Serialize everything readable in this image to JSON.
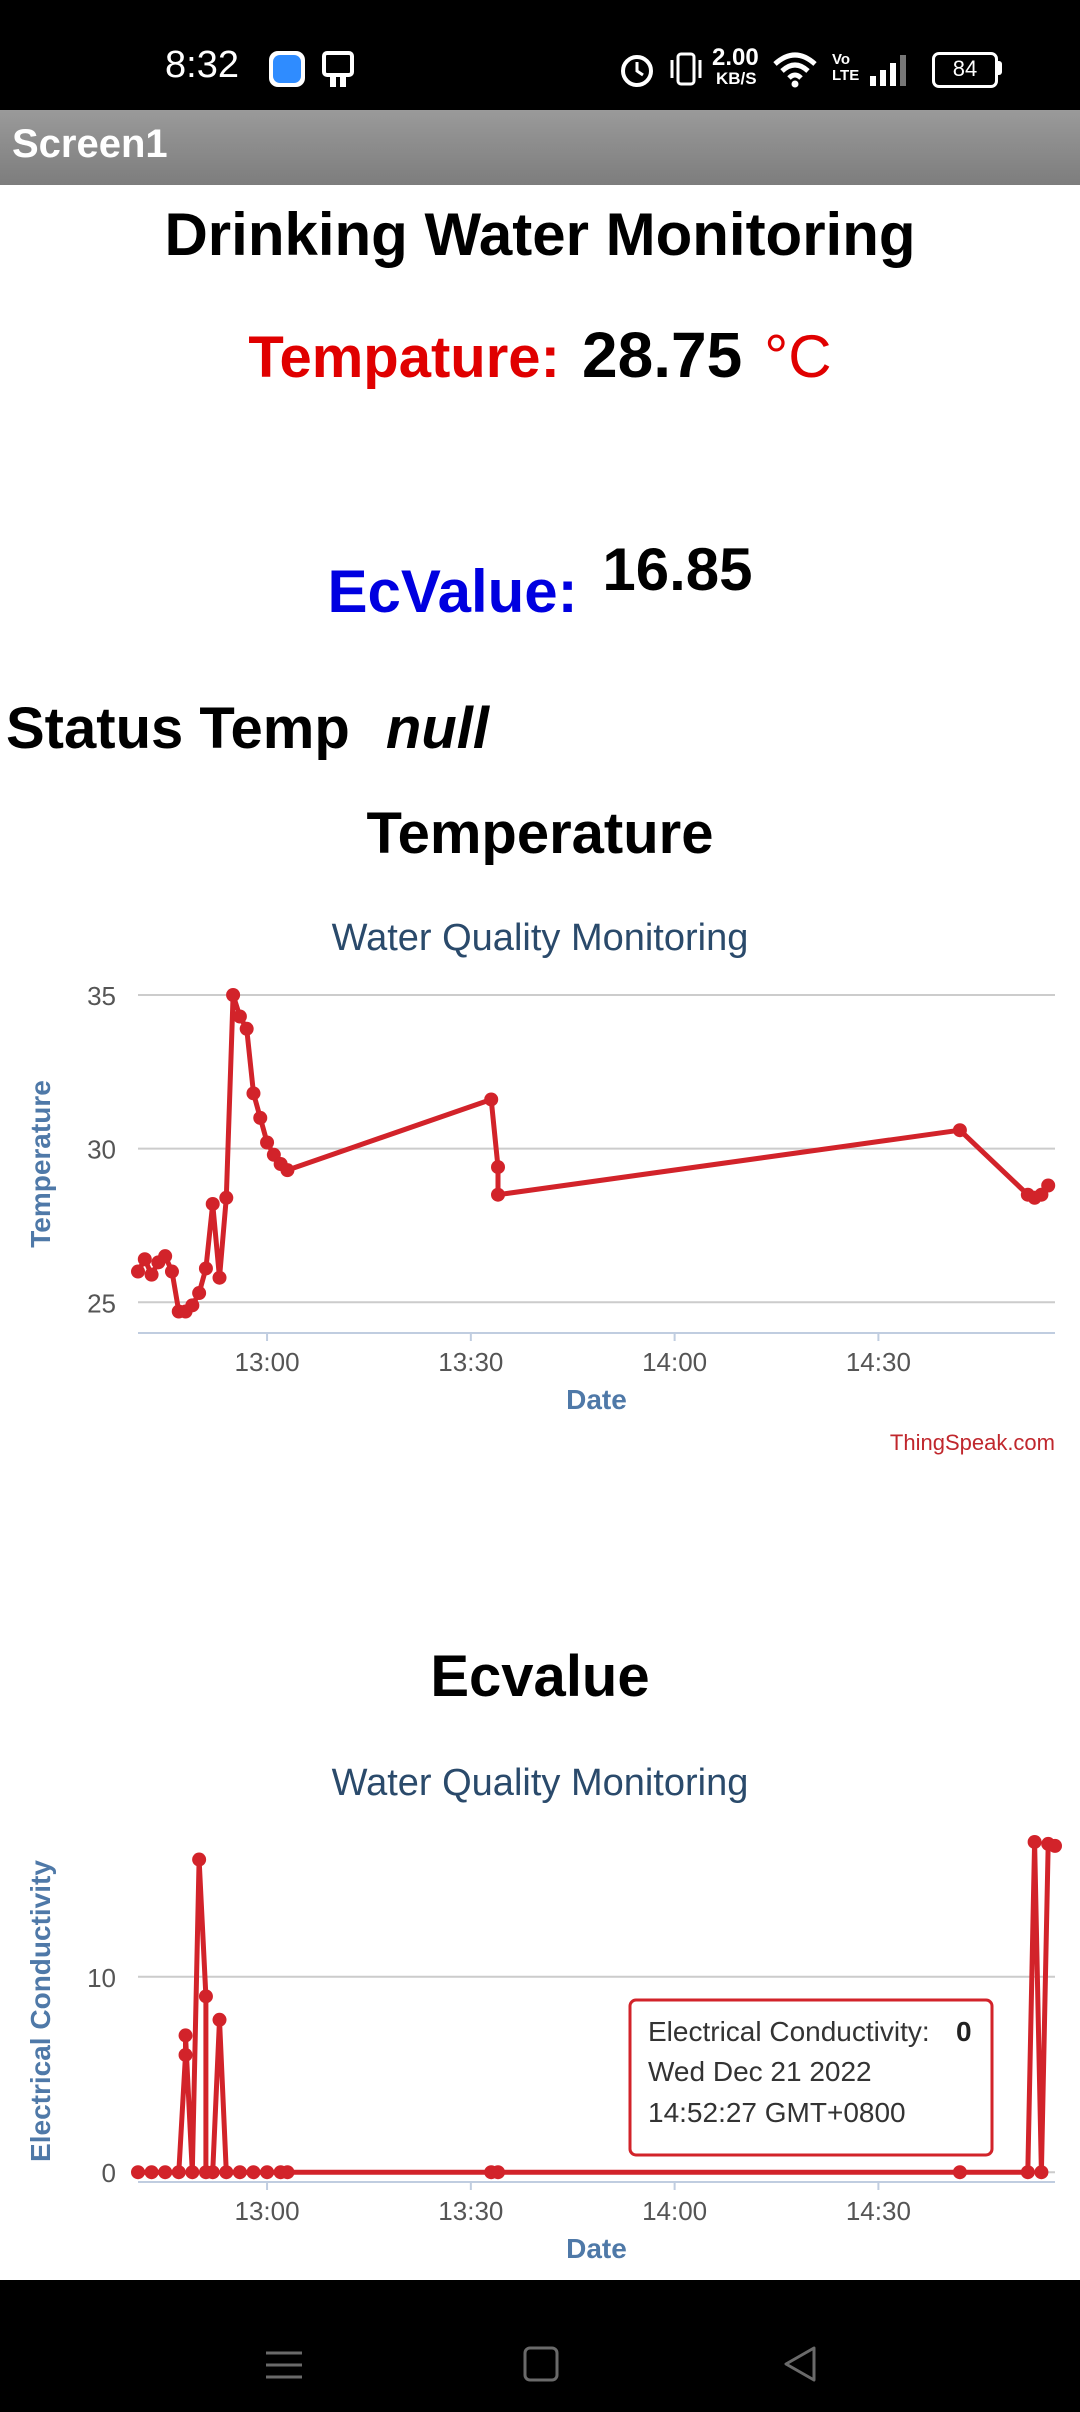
{
  "status_bar": {
    "time": "8:32",
    "net_speed_value": "2.00",
    "net_speed_unit": "KB/S",
    "volte": "Vo LTE",
    "battery": "84",
    "icons": [
      "app-shortcut-icon",
      "tablet-icon",
      "alarm-icon",
      "vibrate-icon",
      "wifi-icon",
      "volte-icon",
      "signal-icon",
      "battery-icon"
    ]
  },
  "app": {
    "screen_title": "Screen1"
  },
  "main": {
    "heading": "Drinking Water Monitoring",
    "temp_label": "Tempature:",
    "temp_value": "28.75",
    "temp_unit": "°C",
    "ec_label": "EcValue:",
    "ec_value": "16.85",
    "status_label": "Status Temp",
    "status_value": "null",
    "temp_section_heading": "Temperature",
    "ec_section_heading": "Ecvalue"
  },
  "colors": {
    "temp_label": "#e00000",
    "ec_label": "#0000e0",
    "series": "#d2232a",
    "chart_title": "#2a4a6b",
    "axis_label": "#4f79a8"
  },
  "nav_bar": {
    "icons": [
      "menu-icon",
      "home-square-icon",
      "back-triangle-icon"
    ]
  },
  "chart_data": [
    {
      "type": "line",
      "title": "Water Quality Monitoring",
      "xlabel": "Date",
      "ylabel": "Temperature",
      "credit": "ThingSpeak.com",
      "xlim": [
        "12:41",
        "14:56"
      ],
      "ylim": [
        24,
        35
      ],
      "x_ticks": [
        "13:00",
        "13:30",
        "14:00",
        "14:30"
      ],
      "y_ticks": [
        25,
        30,
        35
      ],
      "grid": true,
      "series": [
        {
          "x": [
            "12:41",
            "12:42",
            "12:43",
            "12:44",
            "12:45",
            "12:46",
            "12:47",
            "12:48",
            "12:49",
            "12:50",
            "12:51",
            "12:52",
            "12:53",
            "12:54",
            "12:55",
            "12:56",
            "12:57",
            "12:58",
            "12:59",
            "13:00",
            "13:01",
            "13:02",
            "13:03",
            "13:33",
            "13:34",
            "13:34",
            "14:42",
            "14:52",
            "14:53",
            "14:54",
            "14:55"
          ],
          "values": [
            26.0,
            26.4,
            25.9,
            26.3,
            26.5,
            26.0,
            24.7,
            24.7,
            24.9,
            25.3,
            26.1,
            28.2,
            25.8,
            28.4,
            35.0,
            34.3,
            33.9,
            31.8,
            31.0,
            30.2,
            29.8,
            29.5,
            29.3,
            31.6,
            29.4,
            28.5,
            30.6,
            28.5,
            28.4,
            28.5,
            28.8
          ]
        }
      ]
    },
    {
      "type": "line",
      "title": "Water Quality Monitoring",
      "xlabel": "Date",
      "ylabel": "Electrical Conductivity",
      "credit": "ThingSpeak.com",
      "xlim": [
        "12:41",
        "14:56"
      ],
      "ylim": [
        -0.5,
        17
      ],
      "x_ticks": [
        "13:00",
        "13:30",
        "14:00",
        "14:30"
      ],
      "y_ticks": [
        0,
        10
      ],
      "grid": true,
      "tooltip": {
        "label": "Electrical Conductivity:",
        "value": "0",
        "line2": "Wed Dec 21 2022",
        "line3": "14:52:27 GMT+0800"
      },
      "series": [
        {
          "x": [
            "12:41",
            "12:43",
            "12:45",
            "12:47",
            "12:48",
            "12:48",
            "12:49",
            "12:50",
            "12:51",
            "12:51",
            "12:52",
            "12:53",
            "12:54",
            "12:56",
            "12:58",
            "13:00",
            "13:02",
            "13:03",
            "13:33",
            "13:34",
            "14:42",
            "14:52",
            "14:53",
            "14:54",
            "14:55",
            "14:56"
          ],
          "values": [
            0,
            0,
            0,
            0,
            6.0,
            7.0,
            0,
            16.0,
            9.0,
            0,
            0,
            7.8,
            0,
            0,
            0,
            0,
            0,
            0,
            0,
            0,
            0,
            0,
            16.9,
            0,
            16.8,
            16.7
          ]
        }
      ]
    }
  ]
}
